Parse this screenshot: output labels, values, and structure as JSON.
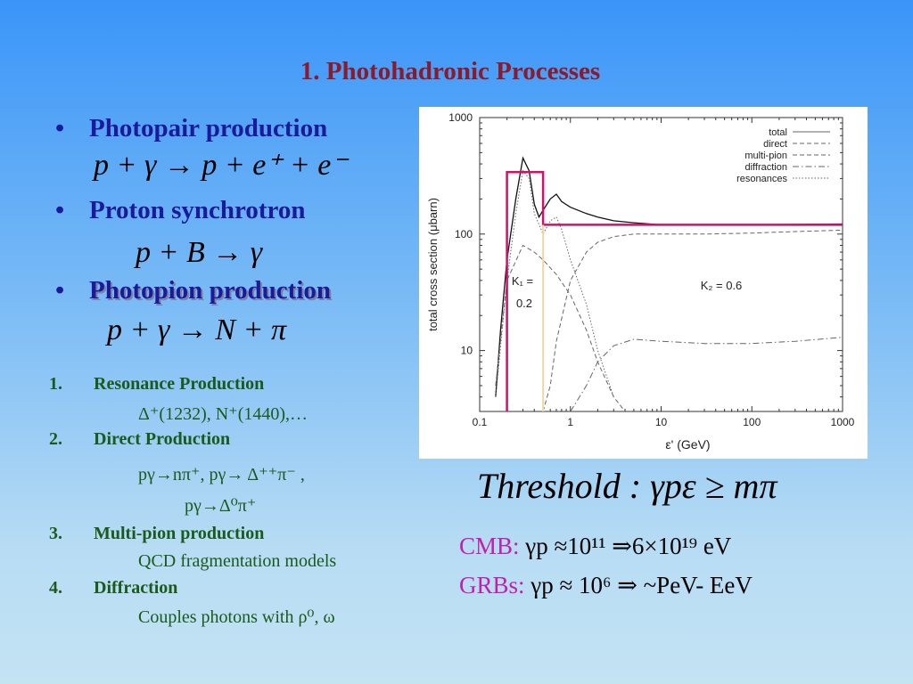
{
  "title": "1. Photohadronic Processes",
  "bullets": {
    "b1": "Photopair production",
    "b2": "Proton synchrotron",
    "b3": "Photopion production",
    "dot": "•"
  },
  "equations": {
    "e1": "p + γ → p + e⁺ + e⁻",
    "e2": "p + B → γ",
    "e3": "p + γ → N + π"
  },
  "list": [
    {
      "num": "1.",
      "label": "Resonance Production",
      "detail": [
        "Δ⁺(1232), N⁺(1440),…"
      ]
    },
    {
      "num": "2.",
      "label": "Direct Production",
      "detail": [
        "pγ→nπ⁺, pγ→ Δ⁺⁺π⁻ ,",
        "pγ→Δ⁰π⁺"
      ]
    },
    {
      "num": "3.",
      "label": "Multi-pion production",
      "detail": [
        "QCD fragmentation models"
      ]
    },
    {
      "num": "4.",
      "label": "Diffraction",
      "detail": [
        "Couples photons with ρ⁰, ω"
      ]
    }
  ],
  "threshold": "Threshold :  γpε ≥ mπ",
  "cmb": {
    "label": "CMB:",
    "text": "γp ≈10¹¹ ⇒6×10¹⁹ eV"
  },
  "grbs": {
    "label": "GRBs:",
    "text": "γp ≈ 10⁶ ⇒ ~PeV- EeV"
  },
  "chart_data": {
    "type": "line",
    "xlabel": "ε' (GeV)",
    "ylabel": "total cross section (μbarn)",
    "xscale": "log",
    "yscale": "log",
    "xlim": [
      0.1,
      1000
    ],
    "ylim": [
      3,
      1000
    ],
    "xticks": [
      "0.1",
      "1",
      "10",
      "100",
      "1000"
    ],
    "yticks": [
      "10",
      "100",
      "1000"
    ],
    "legend": [
      "total",
      "direct",
      "multi-pion",
      "diffraction",
      "resonances"
    ],
    "legend_position": "top-right",
    "annotations": [
      {
        "text": "K₁ =",
        "text2": "0.2"
      },
      {
        "text": "K₂ =  0.6"
      }
    ],
    "step_function": {
      "color": "#d0106a",
      "points": [
        [
          0.2,
          3
        ],
        [
          0.2,
          340
        ],
        [
          0.5,
          340
        ],
        [
          0.5,
          120
        ],
        [
          1000,
          120
        ]
      ]
    },
    "series": [
      {
        "name": "total",
        "style": "solid",
        "x": [
          0.15,
          0.17,
          0.2,
          0.25,
          0.3,
          0.35,
          0.4,
          0.45,
          0.5,
          0.6,
          0.7,
          0.8,
          1,
          1.5,
          2,
          3,
          5,
          10,
          30,
          100,
          300,
          1000
        ],
        "y": [
          4,
          15,
          60,
          200,
          450,
          350,
          180,
          140,
          160,
          200,
          220,
          190,
          170,
          150,
          140,
          130,
          125,
          120,
          120,
          120,
          121,
          122
        ]
      },
      {
        "name": "resonances",
        "style": "dotted",
        "x": [
          0.15,
          0.2,
          0.25,
          0.3,
          0.35,
          0.4,
          0.5,
          0.6,
          0.7,
          0.8,
          1,
          1.5,
          2,
          3
        ],
        "y": [
          4,
          40,
          150,
          350,
          300,
          150,
          100,
          130,
          140,
          110,
          60,
          25,
          10,
          4
        ]
      },
      {
        "name": "direct",
        "style": "dashed",
        "x": [
          0.15,
          0.2,
          0.3,
          0.4,
          0.5,
          0.7,
          1,
          1.5,
          2,
          3,
          4
        ],
        "y": [
          5,
          40,
          80,
          70,
          60,
          45,
          30,
          15,
          8,
          4,
          3
        ]
      },
      {
        "name": "multi-pion",
        "style": "dashed",
        "x": [
          0.5,
          0.6,
          0.7,
          1,
          1.5,
          2,
          3,
          5,
          10,
          30,
          100,
          300,
          1000
        ],
        "y": [
          3,
          5,
          12,
          40,
          70,
          85,
          95,
          100,
          100,
          100,
          102,
          105,
          108
        ]
      },
      {
        "name": "diffraction",
        "style": "dashdot",
        "x": [
          1,
          1.5,
          2,
          3,
          5,
          10,
          30,
          100,
          300,
          1000
        ],
        "y": [
          3,
          5,
          8,
          11,
          12.5,
          12,
          11.5,
          11.5,
          12,
          13
        ]
      }
    ]
  }
}
